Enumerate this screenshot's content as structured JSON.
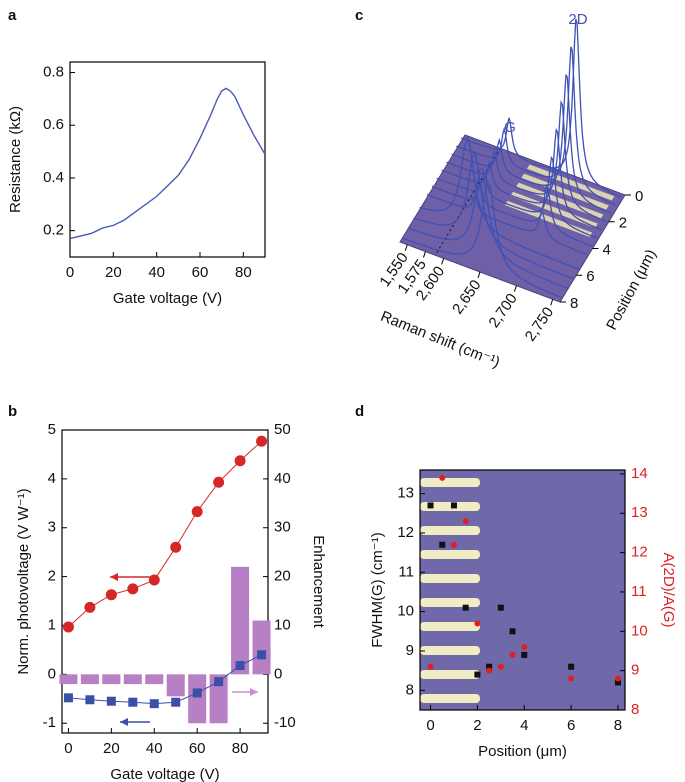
{
  "chart_data": [
    {
      "panel_label": "a",
      "type": "line",
      "x_label": "Gate voltage (V)",
      "y_label": "Resistance (kΩ)",
      "x": [
        0,
        5,
        10,
        15,
        20,
        25,
        30,
        35,
        40,
        45,
        50,
        55,
        60,
        65,
        68,
        70,
        72,
        74,
        76,
        80,
        85,
        90
      ],
      "values": [
        0.17,
        0.18,
        0.19,
        0.21,
        0.22,
        0.24,
        0.27,
        0.3,
        0.33,
        0.37,
        0.41,
        0.47,
        0.55,
        0.64,
        0.7,
        0.73,
        0.74,
        0.73,
        0.71,
        0.64,
        0.56,
        0.49
      ],
      "color": "#4a5bb5",
      "xlim": [
        0,
        90
      ],
      "ylim": [
        0.1,
        0.84
      ],
      "xticks": [
        0,
        20,
        40,
        60,
        80
      ],
      "yticks": [
        0.2,
        0.4,
        0.6,
        0.8
      ]
    },
    {
      "panel_label": "c",
      "type": "waterfall3d",
      "x_label": "Raman shift (cm⁻¹)",
      "y_label": "Position (μm)",
      "xlim": [
        1540,
        2760
      ],
      "x_break": [
        1590,
        2590
      ],
      "xticks": [
        {
          "value": 1550,
          "label": "1,550"
        },
        {
          "value": 1575,
          "label": "1,575"
        },
        {
          "value": 2600,
          "label": "2,600"
        },
        {
          "value": 2650,
          "label": "2,650"
        },
        {
          "value": 2700,
          "label": "2,700"
        },
        {
          "value": 2750,
          "label": "2,750"
        }
      ],
      "ylim": [
        0,
        8
      ],
      "yticks": [
        0,
        2,
        4,
        6,
        8
      ],
      "annotations": [
        "G",
        "2D"
      ],
      "color": "#3f51b5"
    },
    {
      "panel_label": "b",
      "type": "combo",
      "x_label": "Gate voltage (V)",
      "y_label": "Norm. photovoltage (V W⁻¹)",
      "y2_label": "Enhancement",
      "x": [
        0,
        10,
        20,
        30,
        40,
        50,
        60,
        70,
        80,
        90
      ],
      "series": [
        {
          "type": "bar",
          "axis": "y2",
          "color": "#b77fc4",
          "values": [
            -2,
            -2,
            -2,
            -2,
            -2,
            -4.5,
            -10,
            -10,
            22,
            11
          ]
        },
        {
          "type": "line",
          "marker": "circle",
          "color": "#d62728",
          "values": [
            0.97,
            1.37,
            1.63,
            1.75,
            1.93,
            2.6,
            3.33,
            3.93,
            4.37,
            4.77
          ]
        },
        {
          "type": "line",
          "marker": "square",
          "color": "#3b4fa8",
          "values": [
            -0.48,
            -0.52,
            -0.55,
            -0.57,
            -0.6,
            -0.57,
            -0.38,
            -0.15,
            0.18,
            0.4
          ]
        }
      ],
      "xlim": [
        -3,
        93
      ],
      "ylim": [
        -1.2,
        5
      ],
      "y2lim": [
        -12,
        50
      ],
      "xticks": [
        0,
        20,
        40,
        60,
        80
      ],
      "yticks": [
        -1,
        0,
        1,
        2,
        3,
        4,
        5
      ],
      "y2ticks": [
        -10,
        0,
        10,
        20,
        30,
        40,
        50
      ]
    },
    {
      "panel_label": "d",
      "type": "scatter",
      "x_label": "Position (μm)",
      "y_label": "FWHM(G) (cm⁻¹)",
      "y2_label": "A(2D)/A(G)",
      "y2_color": "#e02020",
      "series": [
        {
          "color": "#111111",
          "marker": "square",
          "x": [
            0,
            1,
            0.5,
            1.5,
            2,
            2.5,
            3,
            3.5,
            4,
            6,
            8
          ],
          "values": [
            12.7,
            12.7,
            11.7,
            10.1,
            8.4,
            8.6,
            10.1,
            9.5,
            8.9,
            8.6,
            8.2
          ]
        },
        {
          "color": "#e02020",
          "marker": "circle",
          "axis": "y2",
          "x": [
            0,
            0.5,
            1,
            1.5,
            2,
            2.5,
            3,
            3.5,
            4,
            6,
            8
          ],
          "values": [
            9.1,
            13.9,
            12.2,
            12.8,
            10.2,
            9.0,
            9.1,
            9.4,
            9.6,
            8.8,
            8.8
          ]
        }
      ],
      "xlim": [
        -0.45,
        8.3
      ],
      "ylim": [
        7.5,
        13.6
      ],
      "y2lim": [
        8,
        14.1
      ],
      "xticks": [
        0,
        2,
        4,
        6,
        8
      ],
      "yticks": [
        8,
        9,
        10,
        11,
        12,
        13
      ],
      "y2ticks": [
        8,
        9,
        10,
        11,
        12,
        13,
        14
      ]
    }
  ]
}
